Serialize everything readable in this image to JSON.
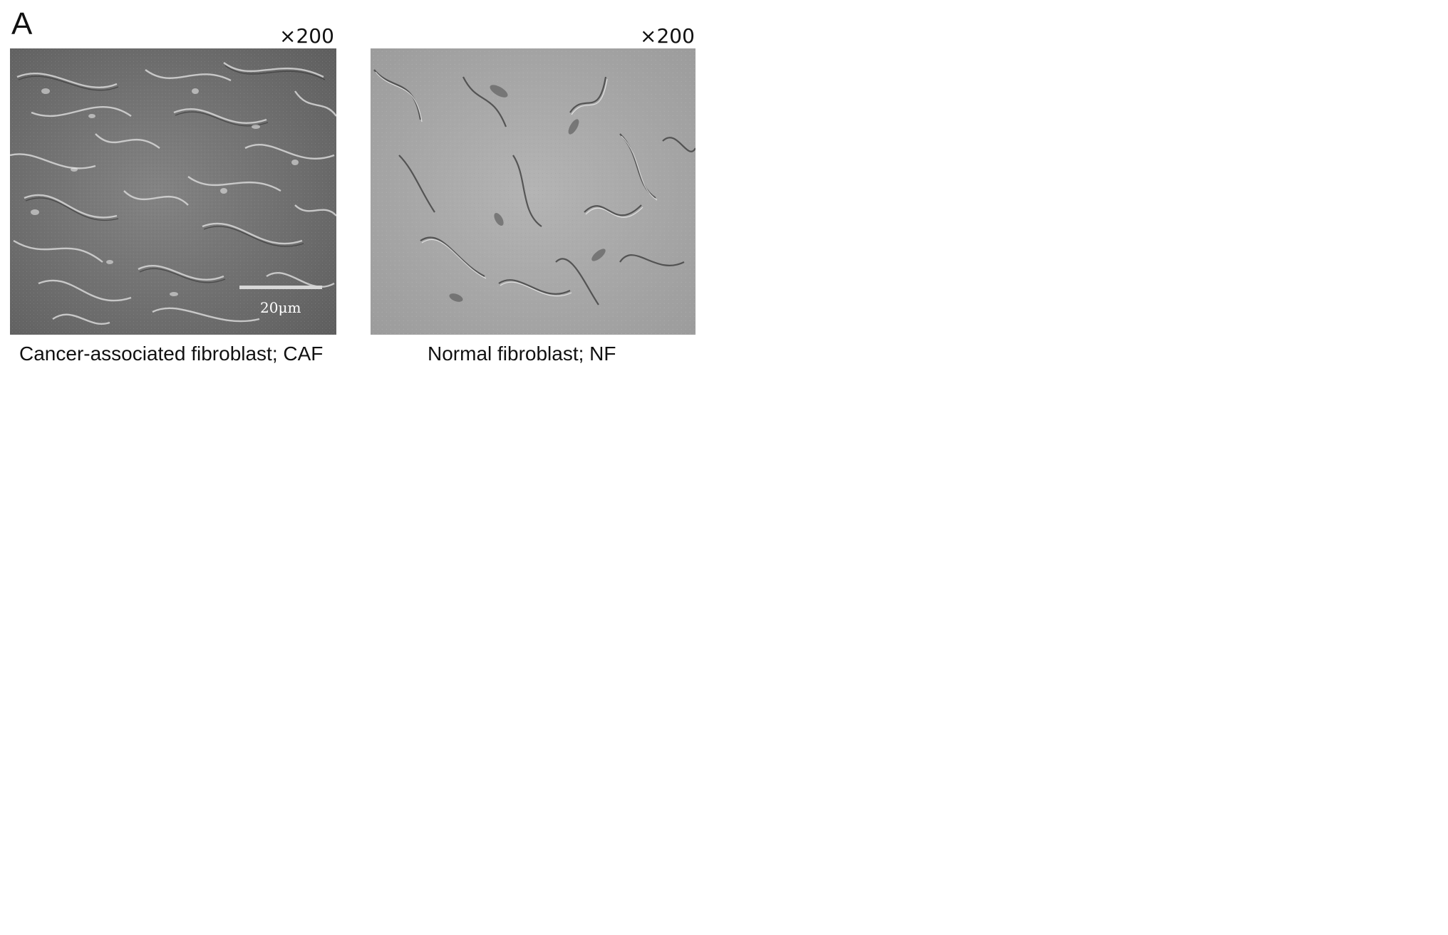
{
  "panel_a": {
    "letter": "A",
    "caf": {
      "magnification": "×200",
      "scale_bar_label": "20μm",
      "caption": "Cancer-associated fibroblast; CAF"
    },
    "nf": {
      "magnification": "×200",
      "caption": "Normal fibroblast; NF"
    }
  }
}
